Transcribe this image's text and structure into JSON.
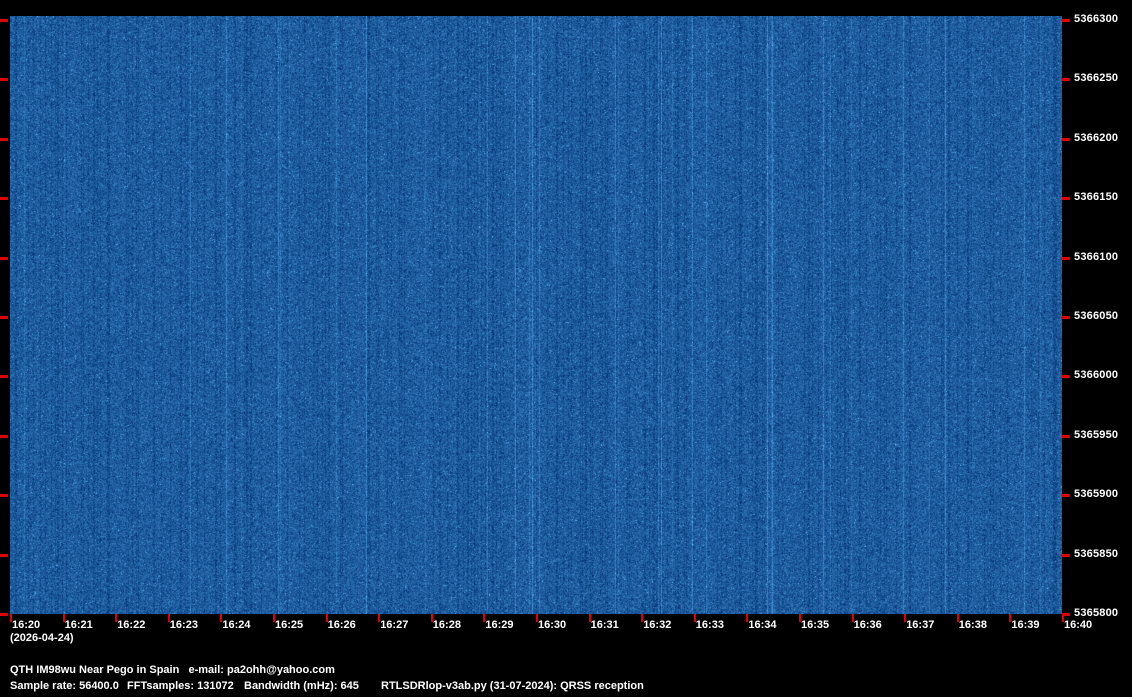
{
  "chart_data": {
    "type": "heatmap",
    "title": "",
    "x_tick_labels": [
      "16:20",
      "16:21",
      "16:22",
      "16:23",
      "16:24",
      "16:25",
      "16:26",
      "16:27",
      "16:28",
      "16:29",
      "16:30",
      "16:31",
      "16:32",
      "16:33",
      "16:34",
      "16:35",
      "16:36",
      "16:37",
      "16:38",
      "16:39",
      "16:40"
    ],
    "x_date_label": "(2026-04-24)",
    "y_tick_labels": [
      "5366300",
      "5366250",
      "5366200",
      "5366150",
      "5366100",
      "5366050",
      "5366000",
      "5365950",
      "5365900",
      "5365850",
      "5365800"
    ],
    "ylim": [
      5365800,
      5366300
    ],
    "xlim": [
      "16:20",
      "16:40"
    ],
    "colormap": {
      "background": "#1f5c9e",
      "noise_high": "#6fa8dc",
      "noise_low": "#0e3f7a"
    },
    "tick_color": "#e00000"
  },
  "footer": {
    "qth": "QTH IM98wu Near Pego in Spain   e-mail: pa2ohh@yahoo.com",
    "sample_rate": "Sample rate: 56400.0",
    "fft_samples": "FFTsamples: 131072",
    "bandwidth": "Bandwidth (mHz): 645",
    "program": "RTLSDRlop-v3ab.py (31-07-2024): QRSS reception"
  }
}
